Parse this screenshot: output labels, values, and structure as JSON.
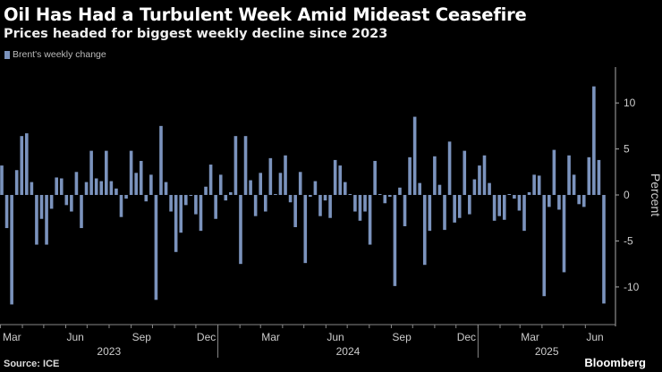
{
  "header": {
    "title": "Oil Has Had a Turbulent Week Amid Mideast Ceasefire",
    "subtitle": "Prices headed for biggest weekly decline since 2023"
  },
  "footer": {
    "source": "Source: ICE",
    "brand": "Bloomberg"
  },
  "chart_data": {
    "type": "bar",
    "series": [
      {
        "name": "Brent's weekly change",
        "color": "#7b93bd",
        "values": [
          3.2,
          -3.6,
          -11.9,
          2.7,
          6.4,
          6.7,
          1.4,
          -5.4,
          -2.6,
          -5.4,
          -1.5,
          1.9,
          1.8,
          -1.1,
          -1.8,
          2.5,
          -3.6,
          1.4,
          4.8,
          1.8,
          1.5,
          4.8,
          1.5,
          0.7,
          -2.4,
          -0.4,
          4.8,
          2.4,
          3.7,
          -0.7,
          2.2,
          -11.4,
          7.5,
          1.4,
          -1.8,
          -6.2,
          -4.1,
          -1.1,
          -0.1,
          -2.1,
          -3.9,
          0.9,
          3.3,
          -2.6,
          2.2,
          -0.6,
          0.3,
          6.4,
          -7.5,
          6.4,
          1.6,
          -2.3,
          2.4,
          -1.8,
          4.0,
          0.1,
          2.4,
          4.3,
          -0.8,
          -3.5,
          2.5,
          -7.4,
          -0.2,
          1.5,
          -2.3,
          -0.6,
          -2.5,
          3.8,
          3.2,
          1.4,
          0.1,
          -1.8,
          -2.8,
          -1.8,
          -5.4,
          3.7,
          0.1,
          -0.9,
          -0.2,
          -9.9,
          0.8,
          -3.4,
          4.1,
          8.5,
          1.3,
          -7.6,
          -3.9,
          4.2,
          1.1,
          -3.8,
          5.8,
          -3.0,
          -2.5,
          4.8,
          -2.1,
          1.7,
          3.2,
          4.3,
          1.3,
          -2.8,
          -2.3,
          -2.7,
          0.1,
          -0.4,
          -1.7,
          -3.9,
          0.3,
          2.2,
          2.1,
          -11.0,
          -1.3,
          4.9,
          -1.6,
          -8.4,
          4.3,
          2.2,
          -1.0,
          -1.3,
          4.1,
          11.8,
          3.8,
          -11.8
        ]
      }
    ],
    "x_start": "2023-03-03",
    "frequency": "weekly",
    "x_tick_labels": [
      "Mar",
      "Jun",
      "Sep",
      "Dec",
      "Mar",
      "Jun",
      "Sep",
      "Dec",
      "Mar",
      "Jun"
    ],
    "x_year_labels": [
      "2023",
      "2024",
      "2025"
    ],
    "ylabel": "Percent",
    "yticks": [
      10,
      5,
      0,
      -5,
      -10
    ],
    "ylim": [
      -13.8,
      13.9
    ],
    "legend": "top-left",
    "grid": false
  }
}
